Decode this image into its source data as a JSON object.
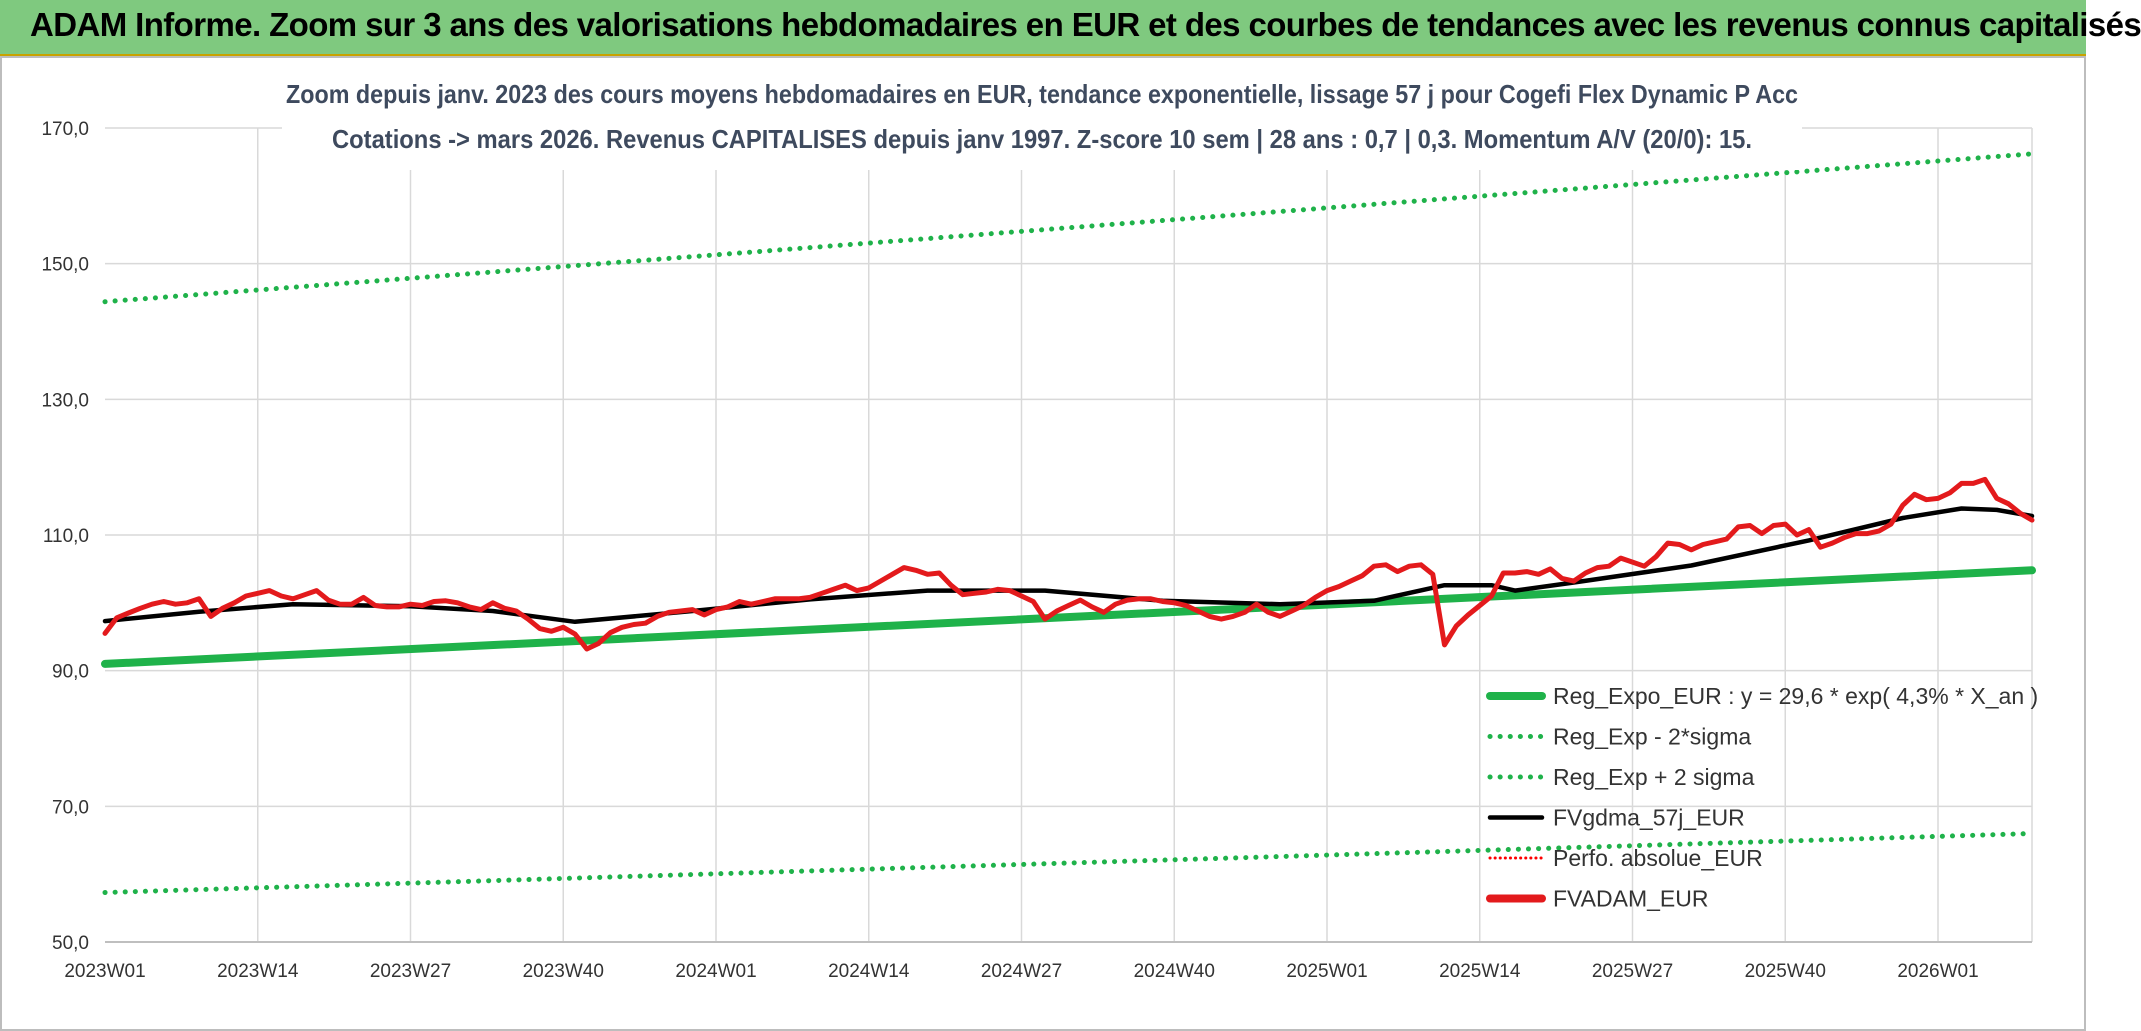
{
  "header": {
    "title": "ADAM Informe. Zoom sur 3 ans des valorisations hebdomadaires en EUR et des courbes de tendances avec les revenus connus capitalisés"
  },
  "chart_data": {
    "type": "line",
    "title": "Zoom depuis janv. 2023 des cours moyens hebdomadaires en EUR, tendance exponentielle, lissage 57 j pour Cogefi Flex Dynamic P Acc",
    "subtitle": "Cotations -> mars 2026. Revenus CAPITALISES depuis janv 1997. Z-score 10 sem | 28 ans : 0,7 | 0,3. Momentum A/V (20/0): 15.",
    "xlabel": "",
    "ylabel": "",
    "x_ticks": [
      "2023W01",
      "2023W14",
      "2023W27",
      "2023W40",
      "2024W01",
      "2024W14",
      "2024W27",
      "2024W40",
      "2025W01",
      "2025W14",
      "2025W27",
      "2025W40",
      "2026W01"
    ],
    "x_range_weeks": [
      0,
      164
    ],
    "ylim": [
      50,
      170
    ],
    "y_ticks": [
      "50,0",
      "70,0",
      "90,0",
      "110,0",
      "130,0",
      "150,0",
      "170,0"
    ],
    "y_tick_values": [
      50,
      70,
      90,
      110,
      130,
      150,
      170
    ],
    "grid": true,
    "legend_position": "bottom-right",
    "series": [
      {
        "name": "Reg_Expo_EUR : y = 29,6 * exp( 4,3% *  X_an )",
        "color": "#1fb24a",
        "style": "solid-thick",
        "points": [
          [
            0,
            91.0
          ],
          [
            164,
            104.8
          ]
        ]
      },
      {
        "name": "Reg_Exp - 2*sigma",
        "color": "#1fb24a",
        "style": "dotted",
        "points": [
          [
            0,
            57.3
          ],
          [
            164,
            66.0
          ]
        ]
      },
      {
        "name": "Reg_Exp + 2 sigma",
        "color": "#1fb24a",
        "style": "dotted",
        "points": [
          [
            0,
            144.4
          ],
          [
            164,
            166.2
          ]
        ]
      },
      {
        "name": "FVgdma_57j_EUR",
        "color": "#000000",
        "style": "solid",
        "points": [
          [
            0,
            97.3
          ],
          [
            8,
            98.7
          ],
          [
            16,
            99.8
          ],
          [
            26,
            99.5
          ],
          [
            33,
            98.8
          ],
          [
            40,
            97.2
          ],
          [
            50,
            98.8
          ],
          [
            60,
            100.5
          ],
          [
            70,
            101.8
          ],
          [
            80,
            101.8
          ],
          [
            90,
            100.3
          ],
          [
            100,
            99.8
          ],
          [
            108,
            100.3
          ],
          [
            114,
            102.6
          ],
          [
            118,
            102.6
          ],
          [
            120,
            101.8
          ],
          [
            125,
            103.0
          ],
          [
            135,
            105.5
          ],
          [
            145,
            109.2
          ],
          [
            153,
            112.5
          ],
          [
            158,
            113.9
          ],
          [
            161,
            113.7
          ],
          [
            164,
            112.8
          ]
        ]
      },
      {
        "name": "Perfo. absolue_EUR",
        "color": "#ff0000",
        "style": "dotted-thin",
        "points": []
      },
      {
        "name": "FVADAM_EUR",
        "color": "#e31a1c",
        "style": "solid-thick",
        "points": [
          [
            0,
            95.5
          ],
          [
            1,
            97.8
          ],
          [
            2,
            98.5
          ],
          [
            3,
            99.2
          ],
          [
            4,
            99.8
          ],
          [
            5,
            100.2
          ],
          [
            6,
            99.8
          ],
          [
            7,
            100.0
          ],
          [
            8,
            100.6
          ],
          [
            9,
            98.0
          ],
          [
            10,
            99.2
          ],
          [
            11,
            100.0
          ],
          [
            12,
            101.0
          ],
          [
            13,
            101.4
          ],
          [
            14,
            101.8
          ],
          [
            15,
            101.0
          ],
          [
            16,
            100.6
          ],
          [
            17,
            101.2
          ],
          [
            18,
            101.8
          ],
          [
            19,
            100.4
          ],
          [
            20,
            99.8
          ],
          [
            21,
            99.8
          ],
          [
            22,
            100.8
          ],
          [
            23,
            99.6
          ],
          [
            24,
            99.4
          ],
          [
            25,
            99.4
          ],
          [
            26,
            99.8
          ],
          [
            27,
            99.6
          ],
          [
            28,
            100.2
          ],
          [
            29,
            100.3
          ],
          [
            30,
            100.0
          ],
          [
            31,
            99.4
          ],
          [
            32,
            99.0
          ],
          [
            33,
            100.0
          ],
          [
            34,
            99.2
          ],
          [
            35,
            98.8
          ],
          [
            36,
            97.6
          ],
          [
            37,
            96.2
          ],
          [
            38,
            95.8
          ],
          [
            39,
            96.4
          ],
          [
            40,
            95.4
          ],
          [
            41,
            93.2
          ],
          [
            42,
            94.0
          ],
          [
            43,
            95.6
          ],
          [
            44,
            96.4
          ],
          [
            45,
            96.8
          ],
          [
            46,
            97.0
          ],
          [
            47,
            98.0
          ],
          [
            48,
            98.6
          ],
          [
            49,
            98.8
          ],
          [
            50,
            99.0
          ],
          [
            51,
            98.2
          ],
          [
            52,
            99.0
          ],
          [
            53,
            99.4
          ],
          [
            54,
            100.2
          ],
          [
            55,
            99.8
          ],
          [
            56,
            100.2
          ],
          [
            57,
            100.6
          ],
          [
            58,
            100.6
          ],
          [
            59,
            100.6
          ],
          [
            60,
            100.8
          ],
          [
            61,
            101.4
          ],
          [
            62,
            102.0
          ],
          [
            63,
            102.6
          ],
          [
            64,
            101.8
          ],
          [
            65,
            102.2
          ],
          [
            66,
            103.2
          ],
          [
            67,
            104.2
          ],
          [
            68,
            105.2
          ],
          [
            69,
            104.8
          ],
          [
            70,
            104.2
          ],
          [
            71,
            104.4
          ],
          [
            72,
            102.6
          ],
          [
            73,
            101.2
          ],
          [
            74,
            101.4
          ],
          [
            75,
            101.6
          ],
          [
            76,
            102.0
          ],
          [
            77,
            101.8
          ],
          [
            78,
            101.0
          ],
          [
            79,
            100.2
          ],
          [
            80,
            97.6
          ],
          [
            81,
            98.8
          ],
          [
            82,
            99.6
          ],
          [
            83,
            100.4
          ],
          [
            84,
            99.4
          ],
          [
            85,
            98.6
          ],
          [
            86,
            99.8
          ],
          [
            87,
            100.4
          ],
          [
            88,
            100.6
          ],
          [
            89,
            100.6
          ],
          [
            90,
            100.2
          ],
          [
            91,
            100.0
          ],
          [
            92,
            99.6
          ],
          [
            93,
            98.8
          ],
          [
            94,
            98.0
          ],
          [
            95,
            97.6
          ],
          [
            96,
            98.0
          ],
          [
            97,
            98.6
          ],
          [
            98,
            99.8
          ],
          [
            99,
            98.6
          ],
          [
            100,
            98.0
          ],
          [
            101,
            98.8
          ],
          [
            102,
            99.6
          ],
          [
            103,
            100.8
          ],
          [
            104,
            101.8
          ],
          [
            105,
            102.4
          ],
          [
            106,
            103.2
          ],
          [
            107,
            104.0
          ],
          [
            108,
            105.4
          ],
          [
            109,
            105.6
          ],
          [
            110,
            104.6
          ],
          [
            111,
            105.4
          ],
          [
            112,
            105.6
          ],
          [
            113,
            104.2
          ],
          [
            114,
            93.8
          ],
          [
            115,
            96.6
          ],
          [
            116,
            98.2
          ],
          [
            117,
            99.6
          ],
          [
            118,
            101.0
          ],
          [
            119,
            104.4
          ],
          [
            120,
            104.4
          ],
          [
            121,
            104.6
          ],
          [
            122,
            104.2
          ],
          [
            123,
            105.0
          ],
          [
            124,
            103.6
          ],
          [
            125,
            103.2
          ],
          [
            126,
            104.4
          ],
          [
            127,
            105.2
          ],
          [
            128,
            105.4
          ],
          [
            129,
            106.6
          ],
          [
            130,
            106.0
          ],
          [
            131,
            105.4
          ],
          [
            132,
            106.8
          ],
          [
            133,
            108.8
          ],
          [
            134,
            108.6
          ],
          [
            135,
            107.8
          ],
          [
            136,
            108.6
          ],
          [
            137,
            109.0
          ],
          [
            138,
            109.4
          ],
          [
            139,
            111.2
          ],
          [
            140,
            111.4
          ],
          [
            141,
            110.2
          ],
          [
            142,
            111.4
          ],
          [
            143,
            111.6
          ],
          [
            144,
            110.0
          ],
          [
            145,
            110.8
          ],
          [
            146,
            108.2
          ],
          [
            147,
            108.8
          ],
          [
            148,
            109.6
          ],
          [
            149,
            110.2
          ],
          [
            150,
            110.2
          ],
          [
            151,
            110.6
          ],
          [
            152,
            111.6
          ],
          [
            153,
            114.4
          ],
          [
            154,
            116.0
          ],
          [
            155,
            115.2
          ],
          [
            156,
            115.4
          ],
          [
            157,
            116.2
          ],
          [
            158,
            117.6
          ],
          [
            159,
            117.6
          ],
          [
            160,
            118.2
          ],
          [
            161,
            115.4
          ],
          [
            162,
            114.6
          ],
          [
            163,
            113.2
          ],
          [
            164,
            112.2
          ]
        ]
      }
    ]
  }
}
